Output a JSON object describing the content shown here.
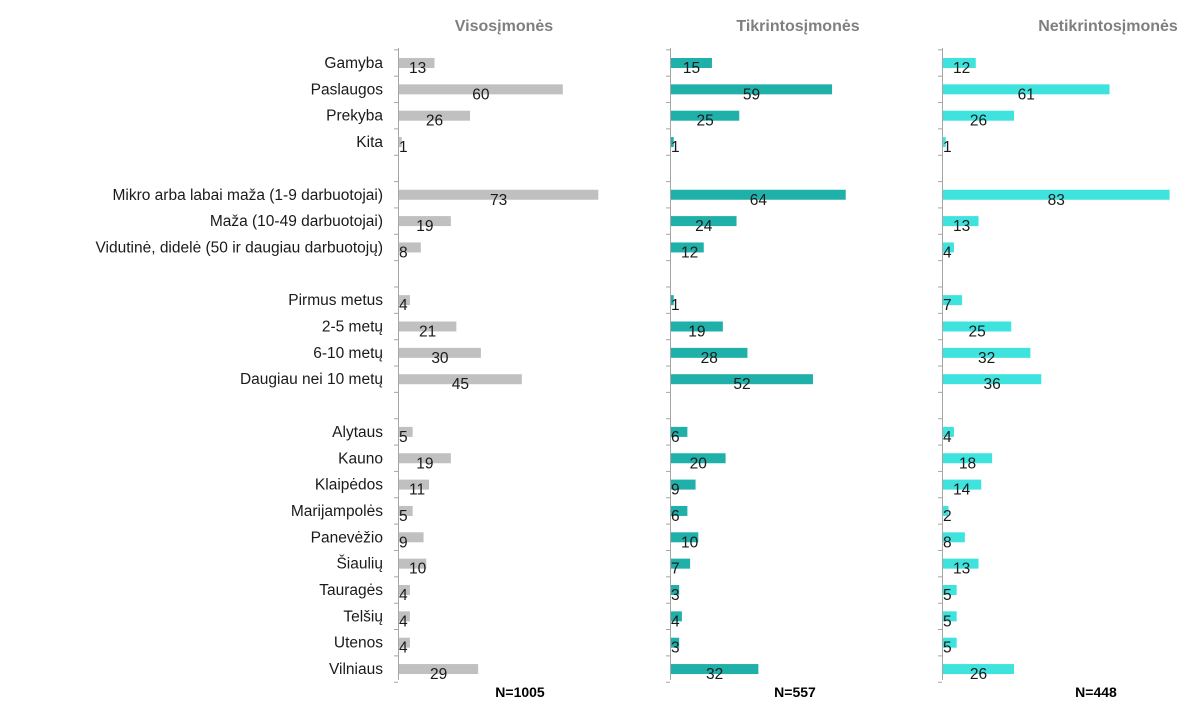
{
  "chart_data": {
    "type": "bar",
    "orientation": "horizontal",
    "categories": [
      "Gamyba",
      "Paslaugos",
      "Prekyba",
      "Kita",
      "",
      "Mikro arba labai maža (1-9 darbuotojai)",
      "Maža (10-49 darbuotojai)",
      "Vidutinė, didelė (50 ir daugiau darbuotojų)",
      "",
      "Pirmus metus",
      "2-5 metų",
      "6-10 metų",
      "Daugiau nei 10 metų",
      "",
      "Alytaus",
      "Kauno",
      "Klaipėdos",
      "Marijampolės",
      "Panevėžio",
      "Šiaulių",
      "Tauragės",
      "Telšių",
      "Utenos",
      "Vilniaus"
    ],
    "panels": [
      {
        "title": "Visosįmonės",
        "n_label": "N=1005",
        "color": "#c0c0c0",
        "values": [
          13,
          60,
          26,
          1,
          null,
          73,
          19,
          8,
          null,
          4,
          21,
          30,
          45,
          null,
          5,
          19,
          11,
          5,
          9,
          10,
          4,
          4,
          4,
          29
        ]
      },
      {
        "title": "Tikrintosįmonės",
        "n_label": "N=557",
        "color": "#1fb0aa",
        "values": [
          15,
          59,
          25,
          1,
          null,
          64,
          24,
          12,
          null,
          1,
          19,
          28,
          52,
          null,
          6,
          20,
          9,
          6,
          10,
          7,
          3,
          4,
          3,
          32
        ]
      },
      {
        "title": "Netikrintosįmonės",
        "n_label": "N=448",
        "color": "#3ee3de",
        "values": [
          12,
          61,
          26,
          1,
          null,
          83,
          13,
          4,
          null,
          7,
          25,
          32,
          36,
          null,
          4,
          18,
          14,
          2,
          8,
          13,
          5,
          5,
          5,
          26
        ]
      }
    ],
    "xlim": [
      0,
      83
    ],
    "grid": false,
    "legend": "none"
  }
}
